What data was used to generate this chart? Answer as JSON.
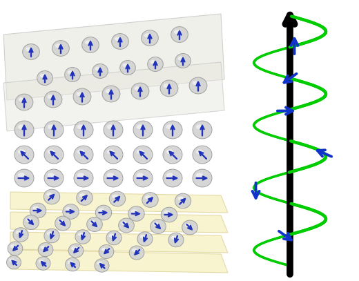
{
  "fig_width": 5.2,
  "fig_height": 4.07,
  "dpi": 100,
  "bg_color": "white",
  "sphere_fc": "#d2d2d2",
  "sphere_ec": "#999999",
  "sphere_alpha": 0.9,
  "arrow_blue": "#2233bb",
  "arrow_dim": "#6677aa",
  "gray_plane_fc": "#e8e8e0",
  "gray_plane_ec": "#bbbbbb",
  "yellow_plane_fc": "#f2eaa0",
  "yellow_plane_ec": "#ccbb66",
  "helix_color": "#00cc00",
  "axis_color": "black",
  "spin_arrow_color": "#1133cc"
}
